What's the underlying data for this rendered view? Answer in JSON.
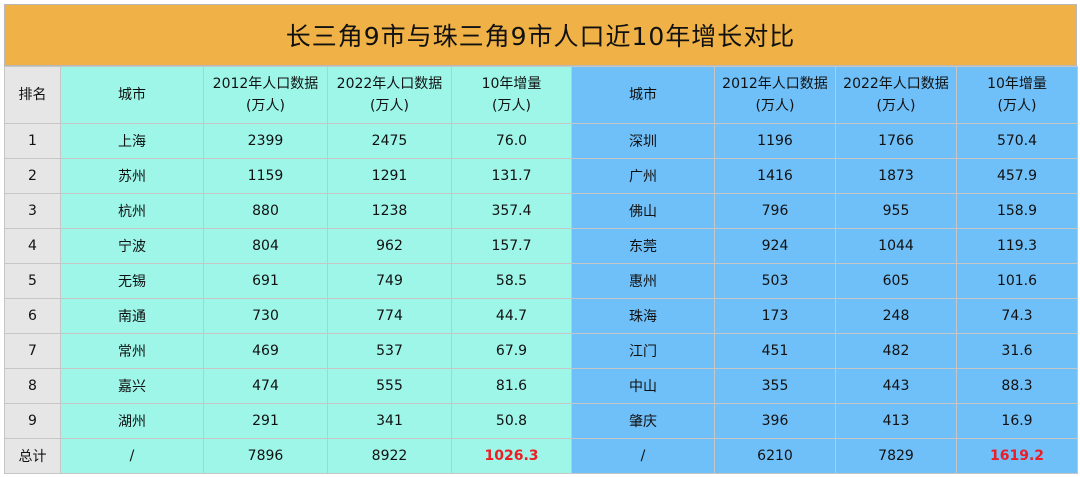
{
  "title": "长三角9市与珠三角9市人口近10年增长对比",
  "headers": {
    "rank": "排名",
    "left": [
      "城市",
      "2012年人口数据",
      "2022年人口数据",
      "10年增量"
    ],
    "left_unit": [
      "",
      "(万人)",
      "(万人)",
      "(万人)"
    ],
    "right": [
      "城市",
      "2012年人口数据",
      "2022年人口数据",
      "10年增量"
    ],
    "right_unit": [
      "",
      "(万人)",
      "(万人)",
      "(万人)"
    ]
  },
  "rows": [
    {
      "rank": "1",
      "l": [
        "上海",
        "2399",
        "2475",
        "76.0"
      ],
      "r": [
        "深圳",
        "1196",
        "1766",
        "570.4"
      ]
    },
    {
      "rank": "2",
      "l": [
        "苏州",
        "1159",
        "1291",
        "131.7"
      ],
      "r": [
        "广州",
        "1416",
        "1873",
        "457.9"
      ]
    },
    {
      "rank": "3",
      "l": [
        "杭州",
        "880",
        "1238",
        "357.4"
      ],
      "r": [
        "佛山",
        "796",
        "955",
        "158.9"
      ]
    },
    {
      "rank": "4",
      "l": [
        "宁波",
        "804",
        "962",
        "157.7"
      ],
      "r": [
        "东莞",
        "924",
        "1044",
        "119.3"
      ]
    },
    {
      "rank": "5",
      "l": [
        "无锡",
        "691",
        "749",
        "58.5"
      ],
      "r": [
        "惠州",
        "503",
        "605",
        "101.6"
      ]
    },
    {
      "rank": "6",
      "l": [
        "南通",
        "730",
        "774",
        "44.7"
      ],
      "r": [
        "珠海",
        "173",
        "248",
        "74.3"
      ]
    },
    {
      "rank": "7",
      "l": [
        "常州",
        "469",
        "537",
        "67.9"
      ],
      "r": [
        "江门",
        "451",
        "482",
        "31.6"
      ]
    },
    {
      "rank": "8",
      "l": [
        "嘉兴",
        "474",
        "555",
        "81.6"
      ],
      "r": [
        "中山",
        "355",
        "443",
        "88.3"
      ]
    },
    {
      "rank": "9",
      "l": [
        "湖州",
        "291",
        "341",
        "50.8"
      ],
      "r": [
        "肇庆",
        "396",
        "413",
        "16.9"
      ]
    }
  ],
  "total": {
    "label": "总计",
    "l": [
      "/",
      "7896",
      "8922",
      "1026.3"
    ],
    "r": [
      "/",
      "6210",
      "7829",
      "1619.2"
    ]
  },
  "colors": {
    "title_bg": "#f0b246",
    "yrd_bg": "#9df6e8",
    "prd_bg": "#6fbff8",
    "rank_bg": "#e6e6e6",
    "highlight": "#ee1c24"
  }
}
